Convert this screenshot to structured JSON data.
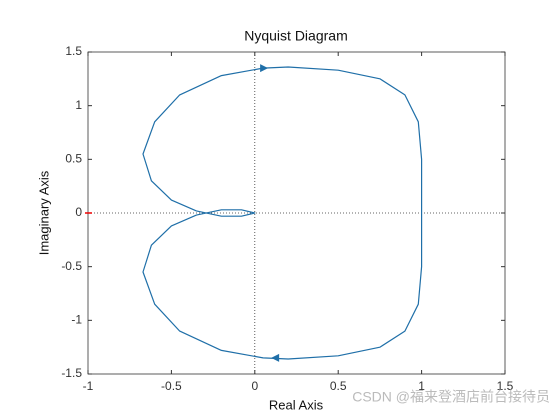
{
  "chart_data": {
    "type": "line",
    "title": "Nyquist Diagram",
    "x_label": "Real Axis",
    "y_label": "Imaginary Axis",
    "x": [
      1,
      1,
      0.98,
      0.9,
      0.75,
      0.5,
      0.2,
      0.05,
      -0.2,
      -0.45,
      -0.6,
      -0.67,
      -0.62,
      -0.5,
      -0.35,
      -0.2,
      -0.08,
      0,
      -0.08,
      -0.2,
      -0.35,
      -0.5,
      -0.62,
      -0.67,
      -0.6,
      -0.45,
      -0.2,
      0.05,
      0.2,
      0.5,
      0.75,
      0.9,
      0.98,
      1,
      1
    ],
    "values": [
      0,
      -0.5,
      -0.85,
      -1.1,
      -1.25,
      -1.33,
      -1.36,
      -1.35,
      -1.28,
      -1.1,
      -0.85,
      -0.55,
      -0.3,
      -0.12,
      -0.02,
      0.03,
      0.03,
      0,
      -0.03,
      -0.03,
      0.02,
      0.12,
      0.3,
      0.55,
      0.85,
      1.1,
      1.28,
      1.35,
      1.36,
      1.33,
      1.25,
      1.1,
      0.85,
      0.5,
      0
    ],
    "color": "#1f6fa8",
    "xlim": [
      -1,
      1.5
    ],
    "xticks": [
      -1,
      -0.5,
      0,
      0.5,
      1,
      1.5
    ],
    "ylim": [
      -1.5,
      1.5
    ],
    "yticks": [
      -1.5,
      -1,
      -0.5,
      0,
      0.5,
      1,
      1.5
    ],
    "watermark": "CSDN @福来登酒店前台接待员"
  }
}
